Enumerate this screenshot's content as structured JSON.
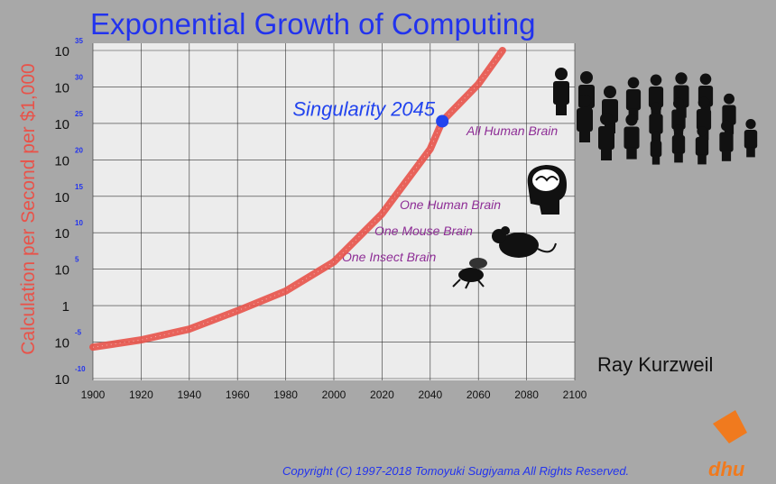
{
  "chart_data": {
    "type": "line",
    "title": "Exponential Growth of Computing",
    "y_label": "Calculation per Second per $1,000",
    "x": [
      1900,
      1920,
      1940,
      1960,
      1980,
      2000,
      2020,
      2040,
      2045,
      2060,
      2070
    ],
    "values": [
      2e-06,
      2e-05,
      0.0006,
      0.2,
      100,
      1000000.0,
      4000000000000.0,
      3e+21,
      2e+25,
      2.5e+30,
      1e+35
    ],
    "color": "#e8534a",
    "xlim": [
      1900,
      2100
    ],
    "xticks": [
      1900,
      1920,
      1940,
      1960,
      1980,
      2000,
      2020,
      2040,
      2060,
      2080,
      2100
    ],
    "log_y": true,
    "ylim": [
      1e-10,
      1e+35
    ],
    "yticks": [
      {
        "value": 1e-10,
        "label": "10",
        "sup": "-10"
      },
      {
        "value": 1e-05,
        "label": "10",
        "sup": "-5"
      },
      {
        "value": 1,
        "label": "1"
      },
      {
        "value": 100000.0,
        "label": "10",
        "sup": "5"
      },
      {
        "value": 10000000000.0,
        "label": "10",
        "sup": "10"
      },
      {
        "value": 1000000000000000.0,
        "label": "10",
        "sup": "15"
      },
      {
        "value": 1e+20,
        "label": "10",
        "sup": "20"
      },
      {
        "value": 1e+25,
        "label": "10",
        "sup": "25"
      },
      {
        "value": 1e+30,
        "label": "10",
        "sup": "30"
      },
      {
        "value": 1e+35,
        "label": "10",
        "sup": "35"
      }
    ],
    "grid": true,
    "highlight": {
      "label": "Singularity 2045",
      "x": 2045,
      "y": 2e+25,
      "color": "#2244ee"
    },
    "annotations": [
      "All Human Brain",
      "One Human Brain",
      "One Mouse Brain",
      "One Insect Brain"
    ],
    "author": "Ray Kurzweil",
    "copyright": "Copyright (C) 1997-2018 Tomoyuki Sugiyama All Rights Reserved.",
    "logo": "dhu"
  }
}
